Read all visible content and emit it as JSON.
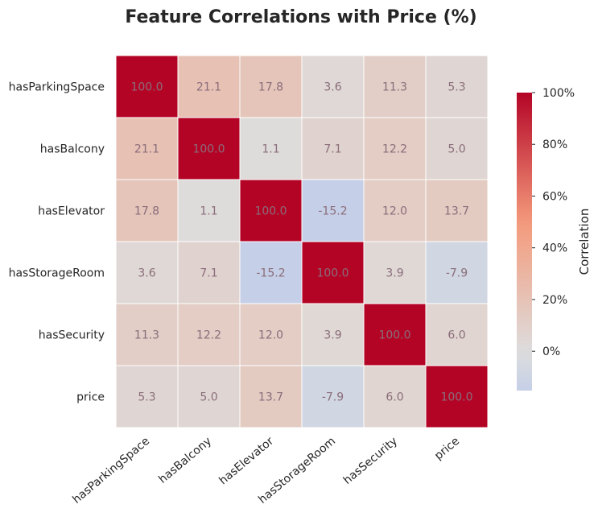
{
  "chart_data": {
    "type": "heatmap",
    "title": "Feature Correlations with Price (%)",
    "rows": [
      "hasParkingSpace",
      "hasBalcony",
      "hasElevator",
      "hasStorageRoom",
      "hasSecurity",
      "price"
    ],
    "columns": [
      "hasParkingSpace",
      "hasBalcony",
      "hasElevator",
      "hasStorageRoom",
      "hasSecurity",
      "price"
    ],
    "values": [
      [
        100.0,
        21.1,
        17.8,
        3.6,
        11.3,
        5.3
      ],
      [
        21.1,
        100.0,
        1.1,
        7.1,
        12.2,
        5.0
      ],
      [
        17.8,
        1.1,
        100.0,
        -15.2,
        12.0,
        13.7
      ],
      [
        3.6,
        7.1,
        -15.2,
        100.0,
        3.9,
        -7.9
      ],
      [
        11.3,
        12.2,
        12.0,
        3.9,
        100.0,
        6.0
      ],
      [
        5.3,
        5.0,
        13.7,
        -7.9,
        6.0,
        100.0
      ]
    ],
    "colorbar": {
      "label": "Correlation",
      "range": [
        -15.2,
        100
      ],
      "ticks": [
        0,
        20,
        40,
        60,
        80,
        100
      ],
      "tick_labels": [
        "0%",
        "20%",
        "40%",
        "60%",
        "80%",
        "100%"
      ]
    },
    "colormap": "coolwarm",
    "center": 0,
    "cell_border_color": "#ffffff"
  }
}
